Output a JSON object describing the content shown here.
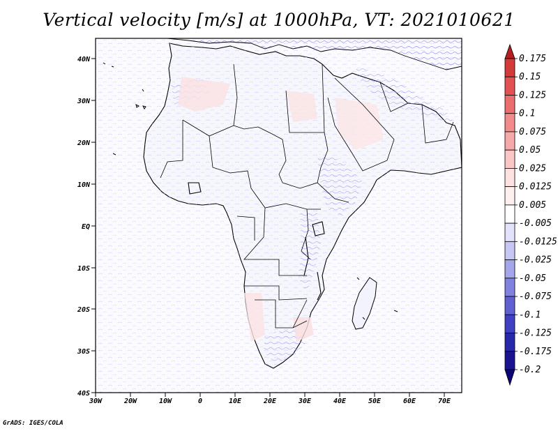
{
  "title": "Vertical velocity [m/s] at 1000hPa, VT: 2021010621",
  "footer": "GrADS: IGES/COLA",
  "map": {
    "lat_labels": [
      "40N",
      "30N",
      "20N",
      "10N",
      "EQ",
      "10S",
      "20S",
      "30S",
      "40S"
    ],
    "lon_labels": [
      "30W",
      "20W",
      "10W",
      "0",
      "10E",
      "20E",
      "30E",
      "40E",
      "50E",
      "60E",
      "70E"
    ]
  },
  "colorbar": {
    "levels": [
      "0.175",
      "0.15",
      "0.125",
      "0.1",
      "0.075",
      "0.05",
      "0.025",
      "0.0125",
      "0.005",
      "-0.005",
      "-0.0125",
      "-0.025",
      "-0.05",
      "-0.075",
      "-0.1",
      "-0.125",
      "-0.175",
      "-0.2"
    ],
    "colors": [
      "#b41f24",
      "#d33a3a",
      "#e35252",
      "#ec6d6d",
      "#f28b8b",
      "#f6a9a9",
      "#fac6c6",
      "#fde2e2",
      "#fff0f0",
      "#ffffff",
      "#e2e2fb",
      "#c7c7f5",
      "#a5a5ec",
      "#8181e0",
      "#6060d3",
      "#4040c2",
      "#2828aa",
      "#1a1490",
      "#0c0578"
    ]
  }
}
